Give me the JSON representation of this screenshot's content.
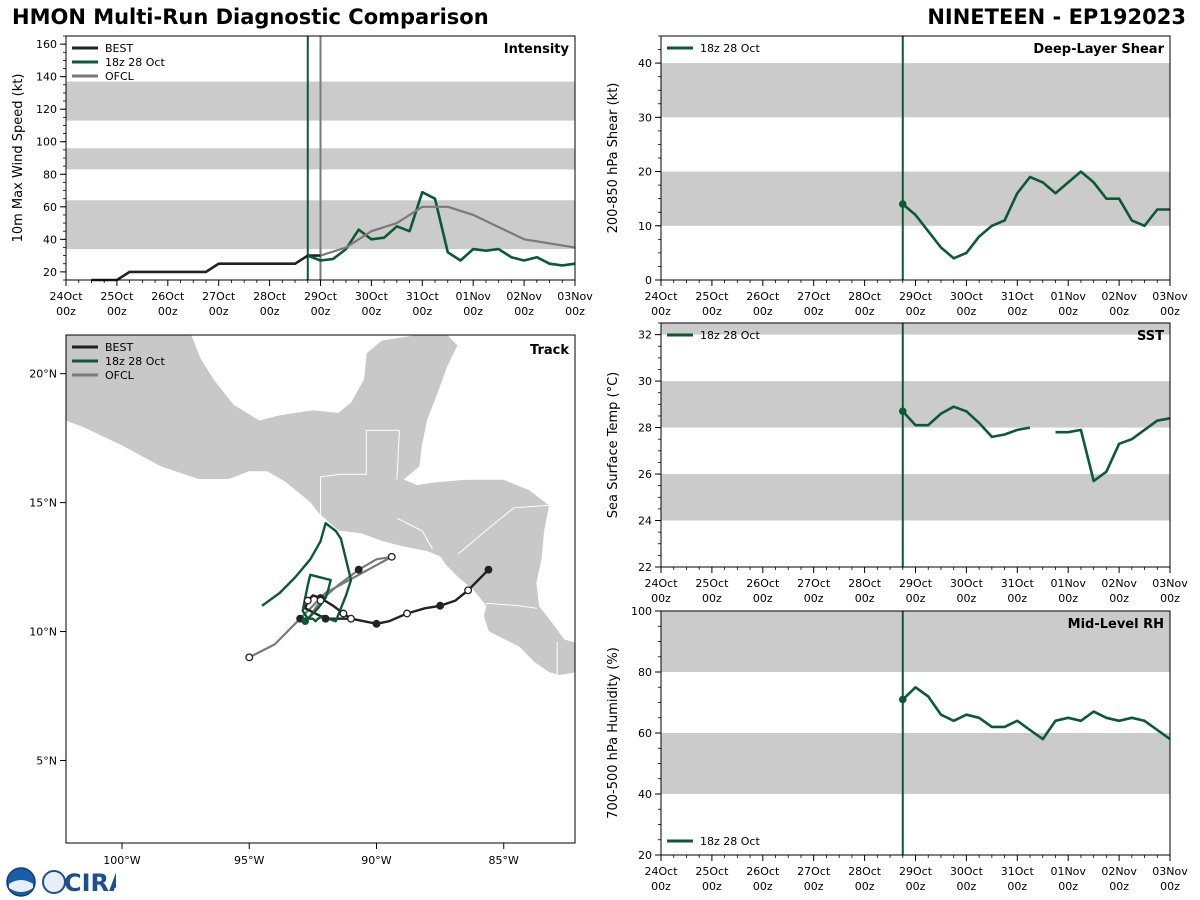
{
  "header": {
    "title": "HMON Multi-Run Diagnostic Comparison",
    "storm": "NINETEEN - EP192023"
  },
  "logo": {
    "text": "CIRA"
  },
  "colors": {
    "best": "#222222",
    "run": "#0b5a36",
    "ofcl": "#7a7a7a",
    "band": "#cbcbcb",
    "land": "#c8c8c8"
  },
  "time_axis": {
    "labels": [
      [
        "24Oct",
        "00z"
      ],
      [
        "25Oct",
        "00z"
      ],
      [
        "26Oct",
        "00z"
      ],
      [
        "27Oct",
        "00z"
      ],
      [
        "28Oct",
        "00z"
      ],
      [
        "29Oct",
        "00z"
      ],
      [
        "30Oct",
        "00z"
      ],
      [
        "31Oct",
        "00z"
      ],
      [
        "01Nov",
        "00z"
      ],
      [
        "02Nov",
        "00z"
      ],
      [
        "03Nov",
        "00z"
      ]
    ]
  },
  "chart_data": [
    {
      "id": "intensity",
      "type": "line",
      "title": "Intensity",
      "ylabel": "10m Max Wind Speed (kt)",
      "xlim_days": [
        0,
        10
      ],
      "ylim": [
        15,
        165
      ],
      "yticks": [
        20,
        40,
        60,
        80,
        100,
        120,
        140,
        160
      ],
      "bands": [
        [
          34,
          64
        ],
        [
          83,
          96
        ],
        [
          113,
          137
        ]
      ],
      "vlines": [
        {
          "x": 4.75,
          "series": "18z 28 Oct"
        },
        {
          "x": 5.0,
          "series": "OFCL"
        }
      ],
      "legend": [
        "BEST",
        "18z 28 Oct",
        "OFCL"
      ],
      "series": [
        {
          "name": "BEST",
          "x": [
            0.5,
            0.75,
            1.0,
            1.25,
            1.5,
            1.75,
            2.0,
            2.25,
            2.5,
            2.75,
            3.0,
            3.25,
            3.5,
            3.75,
            4.0,
            4.25,
            4.5,
            4.75,
            5.0
          ],
          "y": [
            15,
            15,
            15,
            20,
            20,
            20,
            20,
            20,
            20,
            20,
            25,
            25,
            25,
            25,
            25,
            25,
            25,
            30,
            30
          ]
        },
        {
          "name": "18z 28 Oct",
          "x": [
            4.75,
            5.0,
            5.25,
            5.5,
            5.75,
            6.0,
            6.25,
            6.5,
            6.75,
            7.0,
            7.25,
            7.5,
            7.75,
            8.0,
            8.25,
            8.5,
            8.75,
            9.0,
            9.25,
            9.5,
            9.75,
            10.0
          ],
          "y": [
            30,
            27,
            28,
            34,
            46,
            40,
            41,
            48,
            45,
            69,
            65,
            32,
            27,
            34,
            33,
            34,
            29,
            27,
            29,
            25,
            24,
            25
          ]
        },
        {
          "name": "OFCL",
          "x": [
            5.0,
            5.5,
            6.0,
            6.5,
            7.0,
            7.5,
            8.0,
            9.0,
            10.0
          ],
          "y": [
            30,
            35,
            45,
            50,
            60,
            60,
            55,
            40,
            35
          ]
        }
      ]
    },
    {
      "id": "track",
      "type": "line",
      "title": "Track",
      "xlim": [
        -102.2,
        -82.2
      ],
      "ylim": [
        1.8,
        21.5
      ],
      "xticks": [
        -100,
        -95,
        -90,
        -85
      ],
      "xtick_labels": [
        "100°W",
        "95°W",
        "90°W",
        "85°W"
      ],
      "yticks": [
        5,
        10,
        15,
        20
      ],
      "ytick_labels": [
        "5°N",
        "10°N",
        "15°N",
        "20°N"
      ],
      "legend": [
        "BEST",
        "18z 28 Oct",
        "OFCL"
      ],
      "series": [
        {
          "name": "BEST",
          "lon": [
            -85.6,
            -86.0,
            -86.4,
            -86.9,
            -87.5,
            -88.1,
            -88.8,
            -89.5,
            -90.0,
            -90.5,
            -91.0,
            -91.5,
            -92.0,
            -92.8,
            -92.7,
            -92.5,
            -92.2,
            -91.7,
            -91.3,
            -91.0
          ],
          "lat": [
            12.4,
            12.0,
            11.6,
            11.2,
            11.0,
            10.9,
            10.7,
            10.4,
            10.3,
            10.4,
            10.5,
            10.5,
            10.5,
            10.9,
            11.2,
            11.4,
            11.3,
            11.0,
            10.7,
            10.5
          ]
        },
        {
          "name": "18z 28 Oct",
          "lon": [
            -92.8,
            -92.6,
            -92.3,
            -92.0,
            -91.9,
            -91.8,
            -92.2,
            -92.6,
            -92.7,
            -92.8,
            -92.9,
            -92.7,
            -92.5,
            -92.4,
            -92.3,
            -92.1,
            -91.9,
            -91.6,
            -91.4,
            -91.2,
            -91.0,
            -91.4,
            -91.6,
            -92.0,
            -92.2,
            -92.6,
            -93.2,
            -93.8,
            -94.5
          ],
          "lat": [
            10.4,
            10.6,
            10.9,
            11.3,
            11.6,
            12.0,
            12.1,
            12.2,
            11.8,
            11.3,
            10.8,
            10.5,
            10.5,
            10.4,
            10.5,
            10.6,
            10.5,
            10.4,
            10.9,
            11.4,
            12.0,
            13.6,
            13.9,
            14.2,
            13.5,
            12.8,
            12.1,
            11.5,
            11.0
          ]
        },
        {
          "name": "OFCL",
          "lon": [
            -92.6,
            -92.2,
            -91.5,
            -90.7,
            -90.0,
            -89.4,
            -92.0,
            -93.0,
            -94.0,
            -95.0
          ],
          "lat": [
            10.6,
            11.2,
            11.8,
            12.4,
            12.8,
            12.9,
            11.5,
            10.5,
            9.5,
            9.0
          ]
        }
      ]
    },
    {
      "id": "shear",
      "type": "line",
      "title": "Deep-Layer Shear",
      "ylabel": "200-850 hPa Shear (kt)",
      "xlim_days": [
        0,
        10
      ],
      "ylim": [
        0,
        45
      ],
      "yticks": [
        0,
        10,
        20,
        30,
        40
      ],
      "bands": [
        [
          10,
          20
        ],
        [
          30,
          40
        ]
      ],
      "vlines": [
        {
          "x": 4.75,
          "series": "18z 28 Oct"
        }
      ],
      "legend": [
        "18z 28 Oct"
      ],
      "series": [
        {
          "name": "18z 28 Oct",
          "x": [
            4.75,
            5.0,
            5.25,
            5.5,
            5.75,
            6.0,
            6.25,
            6.5,
            6.75,
            7.0,
            7.25,
            7.5,
            7.75,
            8.0,
            8.25,
            8.5,
            8.75,
            9.0,
            9.25,
            9.5,
            9.75,
            10.0
          ],
          "y": [
            14,
            12,
            9,
            6,
            4,
            5,
            8,
            10,
            11,
            16,
            19,
            18,
            16,
            18,
            20,
            18,
            15,
            15,
            11,
            10,
            13,
            13
          ]
        }
      ]
    },
    {
      "id": "sst",
      "type": "line",
      "title": "SST",
      "ylabel": "Sea Surface Temp (°C)",
      "xlim_days": [
        0,
        10
      ],
      "ylim": [
        22,
        32.5
      ],
      "yticks": [
        22,
        24,
        26,
        28,
        30,
        32
      ],
      "bands": [
        [
          24,
          26
        ],
        [
          28,
          30
        ],
        [
          32,
          32.5
        ]
      ],
      "vlines": [
        {
          "x": 4.75,
          "series": "18z 28 Oct"
        }
      ],
      "legend": [
        "18z 28 Oct"
      ],
      "series": [
        {
          "name": "18z 28 Oct",
          "segments": [
            {
              "x": [
                4.75,
                5.0,
                5.25,
                5.5,
                5.75,
                6.0,
                6.25,
                6.5,
                6.75,
                7.0,
                7.25
              ],
              "y": [
                28.7,
                28.1,
                28.1,
                28.6,
                28.9,
                28.7,
                28.2,
                27.6,
                27.7,
                27.9,
                28.0
              ]
            },
            {
              "x": [
                7.75,
                8.0,
                8.25,
                8.5,
                8.75,
                9.0,
                9.25,
                9.5,
                9.75,
                10.0
              ],
              "y": [
                27.8,
                27.8,
                27.9,
                25.7,
                26.1,
                27.3,
                27.5,
                27.9,
                28.3,
                28.4
              ]
            }
          ]
        }
      ]
    },
    {
      "id": "rh",
      "type": "line",
      "title": "Mid-Level RH",
      "ylabel": "700-500 hPa Humidity (%)",
      "xlim_days": [
        0,
        10
      ],
      "ylim": [
        20,
        100
      ],
      "yticks": [
        20,
        40,
        60,
        80,
        100
      ],
      "bands": [
        [
          40,
          60
        ],
        [
          80,
          100
        ]
      ],
      "vlines": [
        {
          "x": 4.75,
          "series": "18z 28 Oct"
        }
      ],
      "legend": [
        "18z 28 Oct"
      ],
      "series": [
        {
          "name": "18z 28 Oct",
          "x": [
            4.75,
            5.0,
            5.25,
            5.5,
            5.75,
            6.0,
            6.25,
            6.5,
            6.75,
            7.0,
            7.25,
            7.5,
            7.75,
            8.0,
            8.25,
            8.5,
            8.75,
            9.0,
            9.25,
            9.5,
            9.75,
            10.0
          ],
          "y": [
            71,
            75,
            72,
            66,
            64,
            66,
            65,
            62,
            62,
            64,
            61,
            58,
            64,
            65,
            64,
            67,
            65,
            64,
            65,
            64,
            61,
            58
          ]
        }
      ]
    }
  ]
}
